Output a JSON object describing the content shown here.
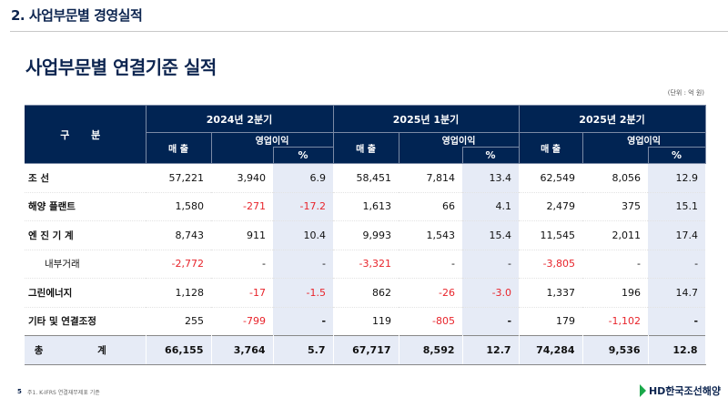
{
  "header": {
    "section_title": "2. 사업부문별 경영실적",
    "page_title": "사업부문별 연결기준 실적",
    "unit": "(단위 : 억 원)"
  },
  "table": {
    "category_header": "구 분",
    "periods": [
      "2024년 2분기",
      "2025년 1분기",
      "2025년 2분기"
    ],
    "sales_header": "매 출",
    "op_header": "영업이익",
    "pct_header": "%",
    "rows": [
      {
        "label": "조    선",
        "values": [
          "57,221",
          "3,940",
          "6.9",
          "58,451",
          "7,814",
          "13.4",
          "62,549",
          "8,056",
          "12.9"
        ]
      },
      {
        "label": "해양 플랜트",
        "values": [
          "1,580",
          "-271",
          "-17.2",
          "1,613",
          "66",
          "4.1",
          "2,479",
          "375",
          "15.1"
        ]
      },
      {
        "label": "엔 진 기 계",
        "values": [
          "8,743",
          "911",
          "10.4",
          "9,993",
          "1,543",
          "15.4",
          "11,545",
          "2,011",
          "17.4"
        ]
      },
      {
        "label": "내부거래",
        "indent": true,
        "values": [
          "-2,772",
          "-",
          "-",
          "-3,321",
          "-",
          "-",
          "-3,805",
          "-",
          "-"
        ]
      },
      {
        "label": "그린에너지",
        "values": [
          "1,128",
          "-17",
          "-1.5",
          "862",
          "-26",
          "-3.0",
          "1,337",
          "196",
          "14.7"
        ]
      },
      {
        "label": "기타 및 연결조정",
        "values": [
          "255",
          "-799",
          "-",
          "119",
          "-805",
          "-",
          "179",
          "-1,102",
          "-"
        ]
      }
    ],
    "total": {
      "label": "총 계",
      "values": [
        "66,155",
        "3,764",
        "5.7",
        "67,717",
        "8,592",
        "12.7",
        "74,284",
        "9,536",
        "12.8"
      ]
    }
  },
  "footer": {
    "page_number": "5",
    "note": "주1. K-IFRS 연결재무제표 기준",
    "logo": "HD한국조선해양"
  },
  "colors": {
    "header_bg": "#012453",
    "negative": "#e8242b",
    "pct_bg": "#e6ebf6",
    "logo_green": "#1aa84a"
  }
}
